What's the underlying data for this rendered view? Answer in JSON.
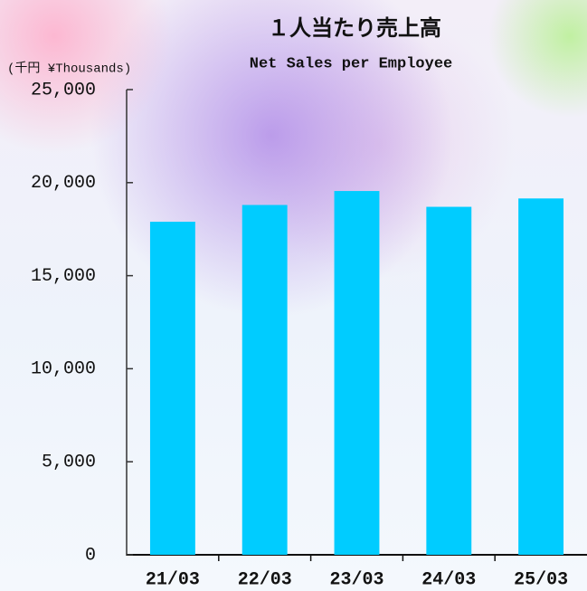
{
  "chart_data": {
    "type": "bar",
    "title": "１人当たり売上高",
    "subtitle": "Net Sales per Employee",
    "unit_label": "(千円 ¥Thousands)",
    "categories": [
      "21/03",
      "22/03",
      "23/03",
      "24/03",
      "25/03"
    ],
    "values": [
      17900,
      18800,
      19550,
      18700,
      19150
    ],
    "color": "#00ccff",
    "ylim": [
      0,
      25000
    ],
    "yticks": [
      0,
      {
        "value": 5000,
        "label": "5,000"
      },
      {
        "value": 10000,
        "label": "10,000"
      },
      {
        "value": 15000,
        "label": "15,000"
      },
      {
        "value": 20000,
        "label": "20,000"
      },
      {
        "value": 25000,
        "label": "25,000"
      }
    ]
  }
}
